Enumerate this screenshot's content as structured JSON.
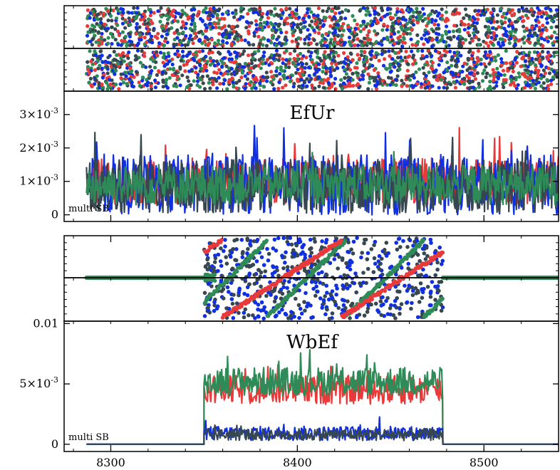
{
  "chart_data": [
    {
      "type": "scatter",
      "panel": "top phase",
      "x_range": [
        8275,
        8540
      ],
      "series": [
        {
          "color": "#e83a3a"
        },
        {
          "color": "#1030e0"
        },
        {
          "color": "#2e8b57"
        },
        {
          "color": "#37474f"
        }
      ]
    },
    {
      "type": "line",
      "title": "EfUr",
      "note": "multi SB",
      "x_range": [
        8275,
        8540
      ],
      "ylim": [
        -0.0002,
        0.0037
      ],
      "yticks": [
        0,
        0.001,
        0.002,
        0.003
      ],
      "ytick_labels": [
        "0",
        "1×10-3",
        "2×10-3",
        "3×10-3"
      ],
      "active_x": [
        8287,
        8540
      ],
      "series": [
        {
          "color": "#e83a3a",
          "mean": 0.001,
          "spread": 0.0007
        },
        {
          "color": "#1030e0",
          "mean": 0.0009,
          "spread": 0.0009
        },
        {
          "color": "#37474f",
          "mean": 0.00085,
          "spread": 0.0008
        },
        {
          "color": "#2e8b57",
          "mean": 0.0009,
          "spread": 0.0006
        }
      ]
    },
    {
      "type": "scatter",
      "panel": "bottom phase",
      "x_range": [
        8275,
        8540
      ],
      "active_x": [
        8350,
        8478
      ],
      "series": [
        {
          "color": "#e83a3a"
        },
        {
          "color": "#1030e0"
        },
        {
          "color": "#2e8b57"
        },
        {
          "color": "#37474f"
        }
      ]
    },
    {
      "type": "line",
      "title": "WbEf",
      "note": "multi SB",
      "x_range": [
        8275,
        8540
      ],
      "ylim": [
        -0.0006,
        0.0102
      ],
      "yticks": [
        0,
        0.005,
        0.01
      ],
      "ytick_labels": [
        "0",
        "5×10-3",
        "0.01"
      ],
      "xticks": [
        8300,
        8400,
        8500
      ],
      "xtick_labels": [
        "8300",
        "8400",
        "8500"
      ],
      "active_x": [
        8350,
        8478
      ],
      "series": [
        {
          "color": "#e83a3a",
          "mean": 0.0045,
          "spread": 0.0012
        },
        {
          "color": "#2e8b57",
          "mean": 0.0052,
          "spread": 0.0012
        },
        {
          "color": "#1030e0",
          "mean": 0.0009,
          "spread": 0.0006
        },
        {
          "color": "#37474f",
          "mean": 0.0008,
          "spread": 0.0005
        }
      ]
    }
  ]
}
